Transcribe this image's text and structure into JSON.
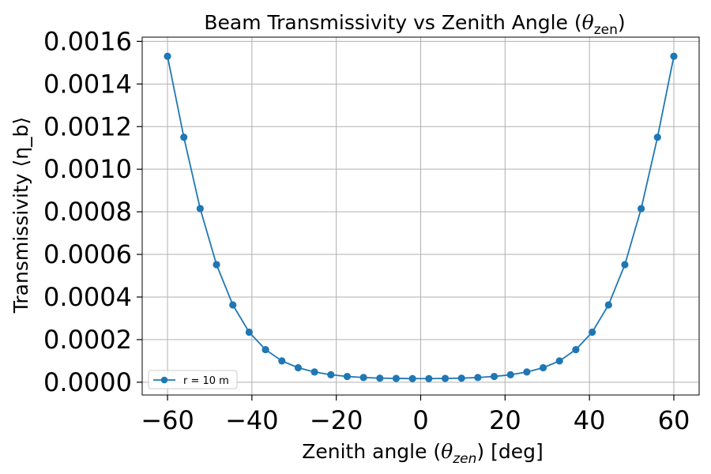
{
  "chart_data": {
    "type": "line",
    "title": "Beam Transmissivity vs Zenith Angle (θzen)",
    "title_main": "Beam Transmissivity vs Zenith Angle (",
    "title_symbol": "θ",
    "title_sub": "zen",
    "title_end": ")",
    "xlabel": "Zenith angle (θzen) [deg]",
    "xlabel_main": "Zenith angle (",
    "xlabel_symbol": "θ",
    "xlabel_sub": "zen",
    "xlabel_end": ") [deg]",
    "ylabel": "Transmissivity ⟨η_b⟩",
    "xlim": [
      -66,
      66
    ],
    "ylim": [
      -6e-05,
      0.00162
    ],
    "xticks": [
      -60,
      -40,
      -20,
      0,
      20,
      40,
      60
    ],
    "xtick_labels": [
      "−60",
      "−40",
      "−20",
      "0",
      "20",
      "40",
      "60"
    ],
    "yticks": [
      0,
      0.0002,
      0.0004,
      0.0006,
      0.0008,
      0.001,
      0.0012,
      0.0014,
      0.0016
    ],
    "ytick_labels": [
      "0.0000",
      "0.0002",
      "0.0004",
      "0.0006",
      "0.0008",
      "0.0010",
      "0.0012",
      "0.0014",
      "0.0016"
    ],
    "grid": true,
    "legend_position": "lower-left",
    "series": [
      {
        "name": "r = 10 m",
        "color": "#1f77b4",
        "x": [
          -60,
          -56.13,
          -52.26,
          -48.39,
          -44.52,
          -40.65,
          -36.77,
          -32.9,
          -29.03,
          -25.16,
          -21.29,
          -17.42,
          -13.55,
          -9.68,
          -5.81,
          -1.94,
          1.94,
          5.81,
          9.68,
          13.55,
          17.42,
          21.29,
          25.16,
          29.03,
          32.9,
          36.77,
          40.65,
          44.52,
          48.39,
          52.26,
          56.13,
          60
        ],
        "y": [
          0.00153,
          0.00115,
          0.000815,
          0.000552,
          0.000363,
          0.000235,
          0.000153,
          0.0001,
          6.8e-05,
          4.8e-05,
          3.5e-05,
          2.7e-05,
          2.2e-05,
          1.9e-05,
          1.8e-05,
          1.7e-05,
          1.7e-05,
          1.8e-05,
          1.9e-05,
          2.2e-05,
          2.7e-05,
          3.5e-05,
          4.8e-05,
          6.8e-05,
          0.0001,
          0.000153,
          0.000235,
          0.000363,
          0.000552,
          0.000815,
          0.00115,
          0.00153
        ]
      }
    ]
  }
}
